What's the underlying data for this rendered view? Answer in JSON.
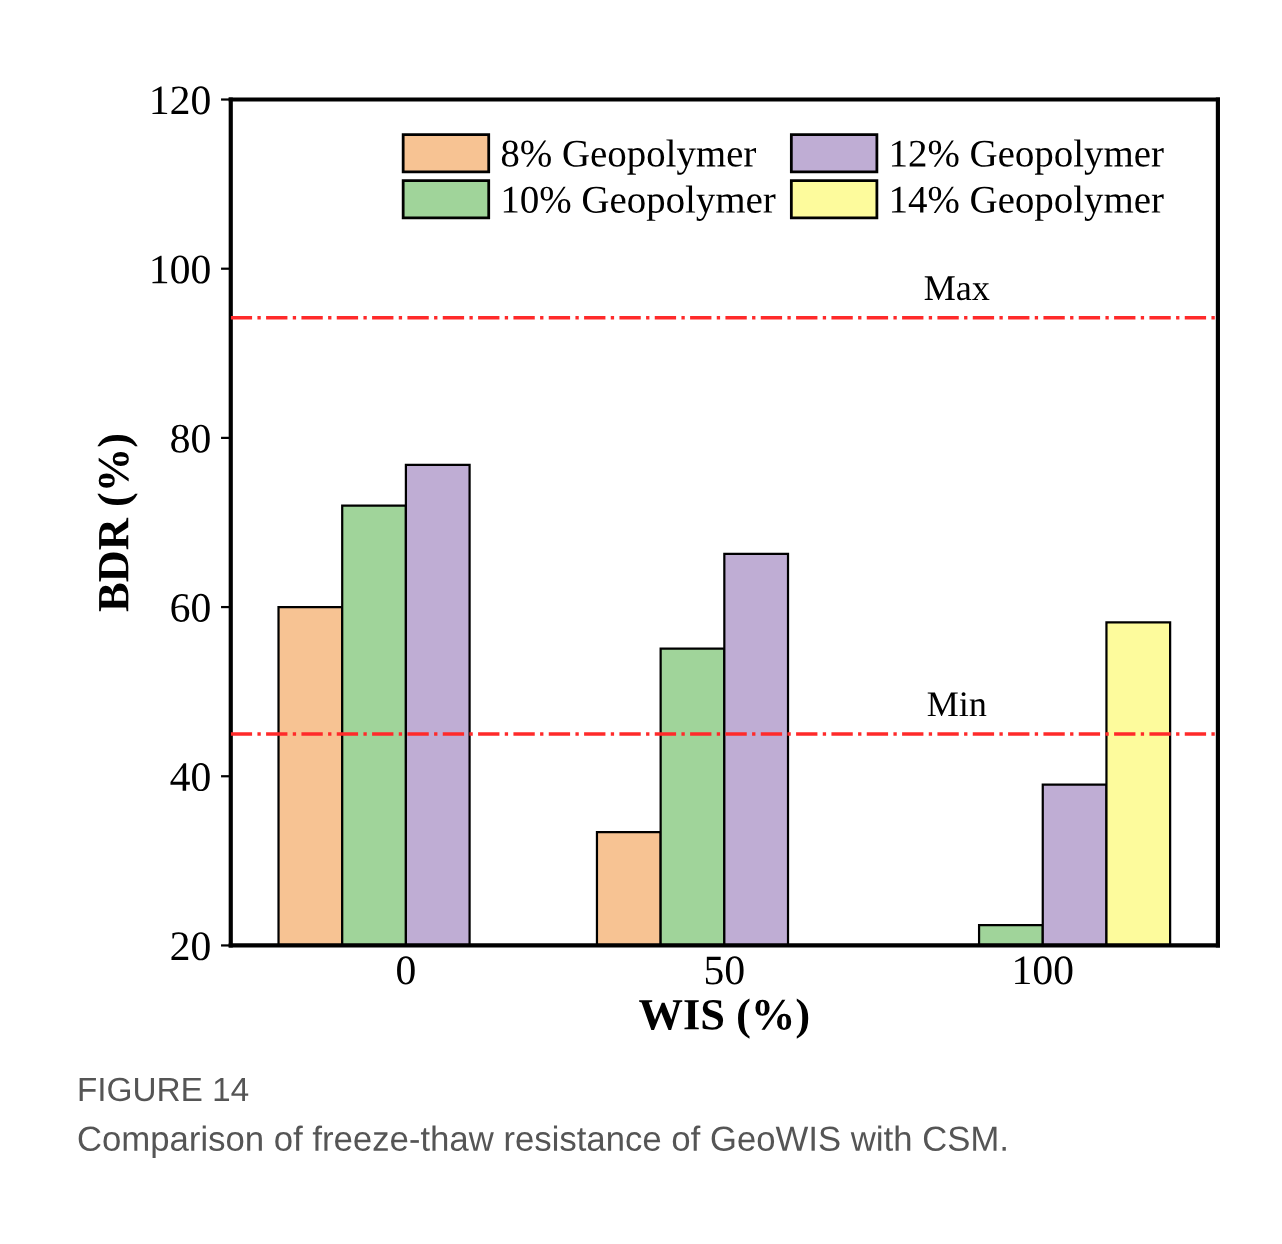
{
  "chart_data": {
    "type": "bar",
    "xlabel": "WIS (%)",
    "ylabel": "BDR (%)",
    "categories": [
      "0",
      "50",
      "100"
    ],
    "series": [
      {
        "name": "8% Geopolymer",
        "color": "#f7c393",
        "values": [
          60,
          33.4,
          null
        ]
      },
      {
        "name": "10% Geopolymer",
        "color": "#a0d49a",
        "values": [
          72,
          55.1,
          22.4
        ]
      },
      {
        "name": "12% Geopolymer",
        "color": "#bfadd4",
        "values": [
          76.8,
          66.3,
          39
        ]
      },
      {
        "name": "14% Geopolymer",
        "color": "#fdfb9c",
        "values": [
          null,
          null,
          58.2
        ]
      }
    ],
    "ylim": [
      20,
      120
    ],
    "yticks": [
      20,
      40,
      60,
      80,
      100,
      120
    ],
    "grid": false,
    "legend": "top",
    "ref_lines": [
      {
        "axis": "y",
        "value": 94.2,
        "label": "Max",
        "color": "#ff2a2a",
        "line_style": "dashdot"
      },
      {
        "axis": "y",
        "value": 45,
        "label": "Min",
        "color": "#ff2a2a",
        "line_style": "dashdot"
      }
    ],
    "annotations": [
      "FIGURE 14",
      "Comparison of freeze-thaw resistance of GeoWIS with CSM."
    ]
  }
}
